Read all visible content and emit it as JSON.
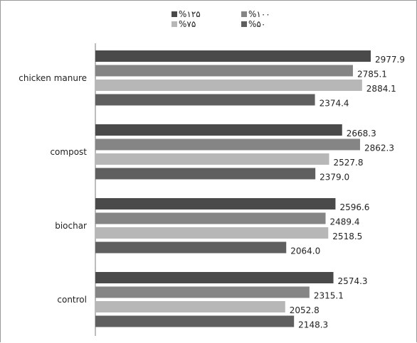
{
  "chart_data": {
    "type": "bar",
    "orientation": "horizontal",
    "categories": [
      "chicken manure",
      "compost",
      "biochar",
      "control"
    ],
    "series": [
      {
        "name": "%۱۲۵",
        "color": "#4a4a4a",
        "values": [
          2977.9,
          2668.3,
          2596.6,
          2574.3
        ]
      },
      {
        "name": "%۱۰۰",
        "color": "#858585",
        "values": [
          2785.1,
          2862.3,
          2489.4,
          2315.1
        ]
      },
      {
        "name": "%۷۵",
        "color": "#b7b7b7",
        "values": [
          2884.1,
          2527.8,
          2518.5,
          2052.8
        ]
      },
      {
        "name": "%۵۰",
        "color": "#5f5f5f",
        "values": [
          2374.4,
          2379.0,
          2064.0,
          2148.3
        ]
      }
    ],
    "value_labels": [
      [
        "2977.9",
        "2668.3",
        "2596.6",
        "2574.3"
      ],
      [
        "2785.1",
        "2862.3",
        "2489.4",
        "2315.1"
      ],
      [
        "2884.1",
        "2527.8",
        "2518.5",
        "2052.8"
      ],
      [
        "2374.4",
        "2379.0",
        "2064.0",
        "2148.3"
      ]
    ],
    "xlim": [
      0,
      3200
    ],
    "grid": false,
    "legend_position": "top"
  }
}
